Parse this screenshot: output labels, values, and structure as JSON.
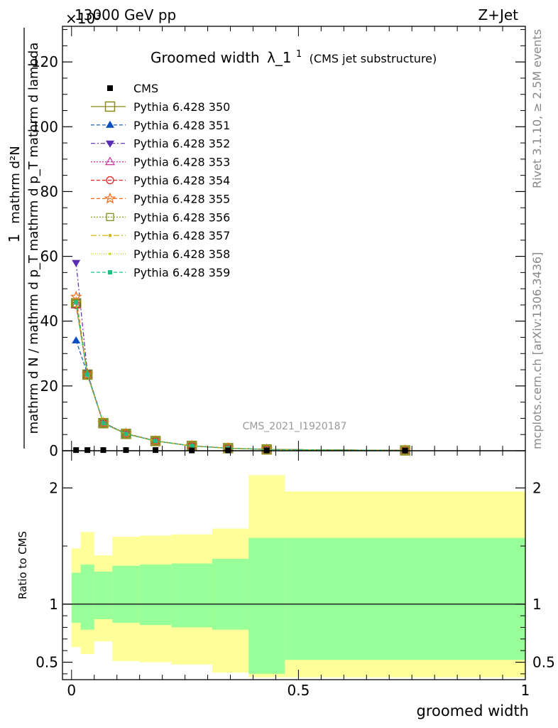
{
  "header": {
    "energy_label": "13000 GeV pp",
    "process_label": "Z+Jet",
    "exponent_label": "×10³"
  },
  "side_labels": {
    "rivet": "Rivet 3.1.10, ≥ 2.5M events",
    "mcplots": "mcplots.cern.ch [arXiv:1306.3436]"
  },
  "main_panel": {
    "title_main": "Groomed width",
    "title_symbol": "λ_1",
    "title_superscript": "1",
    "title_suffix": "(CMS jet substructure)",
    "ylabel_lines": [
      "1",
      "mathrm d N / mathrm d p_T mathrm d p_T mathrm d lambda",
      "mathrm d²N"
    ],
    "watermark": "CMS_2021_I1920187"
  },
  "ratio_panel": {
    "ylabel": "Ratio to CMS",
    "xlabel": "groomed width"
  },
  "colors": {
    "band_inner": "#99ff99",
    "band_outer": "#ffff99"
  },
  "chart_data": [
    {
      "type": "line",
      "xlim": [
        -0.02,
        1.0
      ],
      "ylim": [
        0,
        131
      ],
      "x_ticks": [
        0,
        0.5,
        1
      ],
      "y_ticks": [
        0,
        20,
        40,
        60,
        80,
        100,
        120
      ],
      "y_tick_labels": [
        "0",
        "20",
        "40",
        "60",
        "80",
        "100",
        "120"
      ],
      "y_unit_multiplier": 1000,
      "legend_position": "top-left",
      "x": [
        0.01,
        0.035,
        0.07,
        0.12,
        0.185,
        0.265,
        0.345,
        0.43,
        0.735
      ],
      "series": [
        {
          "name": "CMS",
          "marker": "square-filled",
          "color": "#000000",
          "dash": "",
          "values": [
            0.2,
            0.2,
            0.2,
            0.2,
            0.2,
            0.1,
            0.1,
            0.1,
            0.05
          ]
        },
        {
          "name": "Pythia 6.428 350",
          "marker": "square-open-large",
          "color": "#8b8b1a",
          "dash": "",
          "values": [
            45.5,
            23.5,
            8.5,
            5.2,
            3.0,
            1.5,
            0.8,
            0.4,
            0.1
          ]
        },
        {
          "name": "Pythia 6.428 351",
          "marker": "triangle-up-filled",
          "color": "#0b4fbf",
          "dash": "5,3",
          "values": [
            34.0,
            23.8,
            8.6,
            5.3,
            3.1,
            1.5,
            0.8,
            0.4,
            0.1
          ]
        },
        {
          "name": "Pythia 6.428 352",
          "marker": "triangle-down-filled",
          "color": "#5b2bb3",
          "dash": "6,3,2,3",
          "values": [
            58.0,
            24.0,
            8.7,
            5.3,
            3.0,
            1.5,
            0.8,
            0.4,
            0.1
          ]
        },
        {
          "name": "Pythia 6.428 353",
          "marker": "triangle-up-open",
          "color": "#cc3399",
          "dash": "2,2",
          "values": [
            45.0,
            23.4,
            8.5,
            5.2,
            3.0,
            1.5,
            0.8,
            0.4,
            0.1
          ]
        },
        {
          "name": "Pythia 6.428 354",
          "marker": "circle-open",
          "color": "#e01b1b",
          "dash": "5,3",
          "values": [
            45.0,
            23.4,
            8.5,
            5.2,
            3.0,
            1.5,
            0.8,
            0.4,
            0.1
          ]
        },
        {
          "name": "Pythia 6.428 355",
          "marker": "star-open",
          "color": "#f07020",
          "dash": "5,3",
          "values": [
            47.5,
            23.6,
            8.6,
            5.3,
            3.0,
            1.5,
            0.8,
            0.4,
            0.1
          ]
        },
        {
          "name": "Pythia 6.428 356",
          "marker": "square-open",
          "color": "#7f8f1a",
          "dash": "2,2",
          "values": [
            45.5,
            23.5,
            8.5,
            5.2,
            3.0,
            1.5,
            0.8,
            0.4,
            0.1
          ]
        },
        {
          "name": "Pythia 6.428 357",
          "marker": "dot-small",
          "color": "#d4b000",
          "dash": "8,3,2,3",
          "values": [
            45.5,
            23.5,
            8.5,
            5.2,
            3.0,
            1.5,
            0.8,
            0.4,
            0.1
          ]
        },
        {
          "name": "Pythia 6.428 358",
          "marker": "dot-tiny",
          "color": "#bfd400",
          "dash": "1,2",
          "values": [
            45.5,
            23.5,
            8.5,
            5.2,
            3.0,
            1.5,
            0.8,
            0.4,
            0.1
          ]
        },
        {
          "name": "Pythia 6.428 359",
          "marker": "square-filled-small",
          "color": "#1fbf7f",
          "dash": "5,3",
          "values": [
            45.8,
            23.5,
            8.5,
            5.2,
            3.0,
            1.5,
            0.8,
            0.4,
            0.1
          ]
        }
      ]
    },
    {
      "type": "area",
      "xlim": [
        -0.02,
        1.0
      ],
      "ylim": [
        0.35,
        2.32
      ],
      "x_ticks": [
        0,
        0.5,
        1
      ],
      "x_tick_labels": [
        "0",
        "0.5",
        "1"
      ],
      "y_ticks": [
        0.5,
        1,
        2
      ],
      "y_tick_labels": [
        "0.5",
        "1",
        "2"
      ],
      "bin_edges": [
        0,
        0.02,
        0.05,
        0.09,
        0.15,
        0.22,
        0.31,
        0.39,
        0.47,
        1.0
      ],
      "inner_band": {
        "lower": [
          0.84,
          0.78,
          0.87,
          0.84,
          0.82,
          0.8,
          0.78,
          0.4,
          0.52
        ],
        "upper": [
          1.27,
          1.34,
          1.28,
          1.33,
          1.34,
          1.35,
          1.39,
          1.57,
          1.57
        ]
      },
      "outer_band": {
        "lower": [
          0.63,
          0.57,
          0.68,
          0.51,
          0.5,
          0.48,
          0.41,
          0.37,
          0.37
        ],
        "upper": [
          1.48,
          1.62,
          1.42,
          1.58,
          1.59,
          1.6,
          1.65,
          2.11,
          1.97
        ]
      },
      "reference_line": 1
    }
  ]
}
